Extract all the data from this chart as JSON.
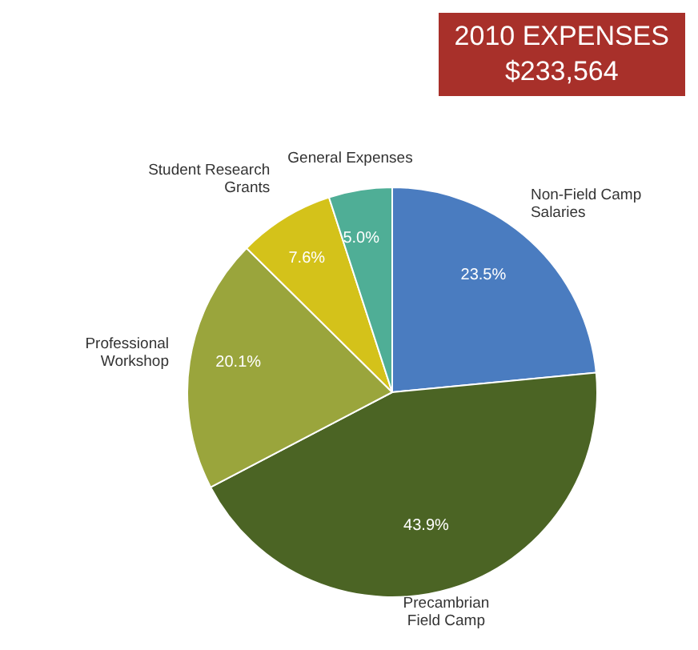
{
  "chart_data": {
    "type": "pie",
    "title": "2010 EXPENSES",
    "subtitle": "$233,564",
    "categories": [
      "Non-Field Camp Salaries",
      "Precambrian Field Camp",
      "Professional Workshop",
      "Student Research Grants",
      "General Expenses"
    ],
    "values": [
      23.5,
      43.9,
      20.1,
      7.6,
      5.0
    ],
    "colors": [
      "#4a7cc0",
      "#4b6424",
      "#9aa53c",
      "#d4c21a",
      "#4fae96"
    ],
    "value_labels": [
      "23.5%",
      "43.9%",
      "20.1%",
      "7.6%",
      "5.0%"
    ],
    "legend": false
  }
}
